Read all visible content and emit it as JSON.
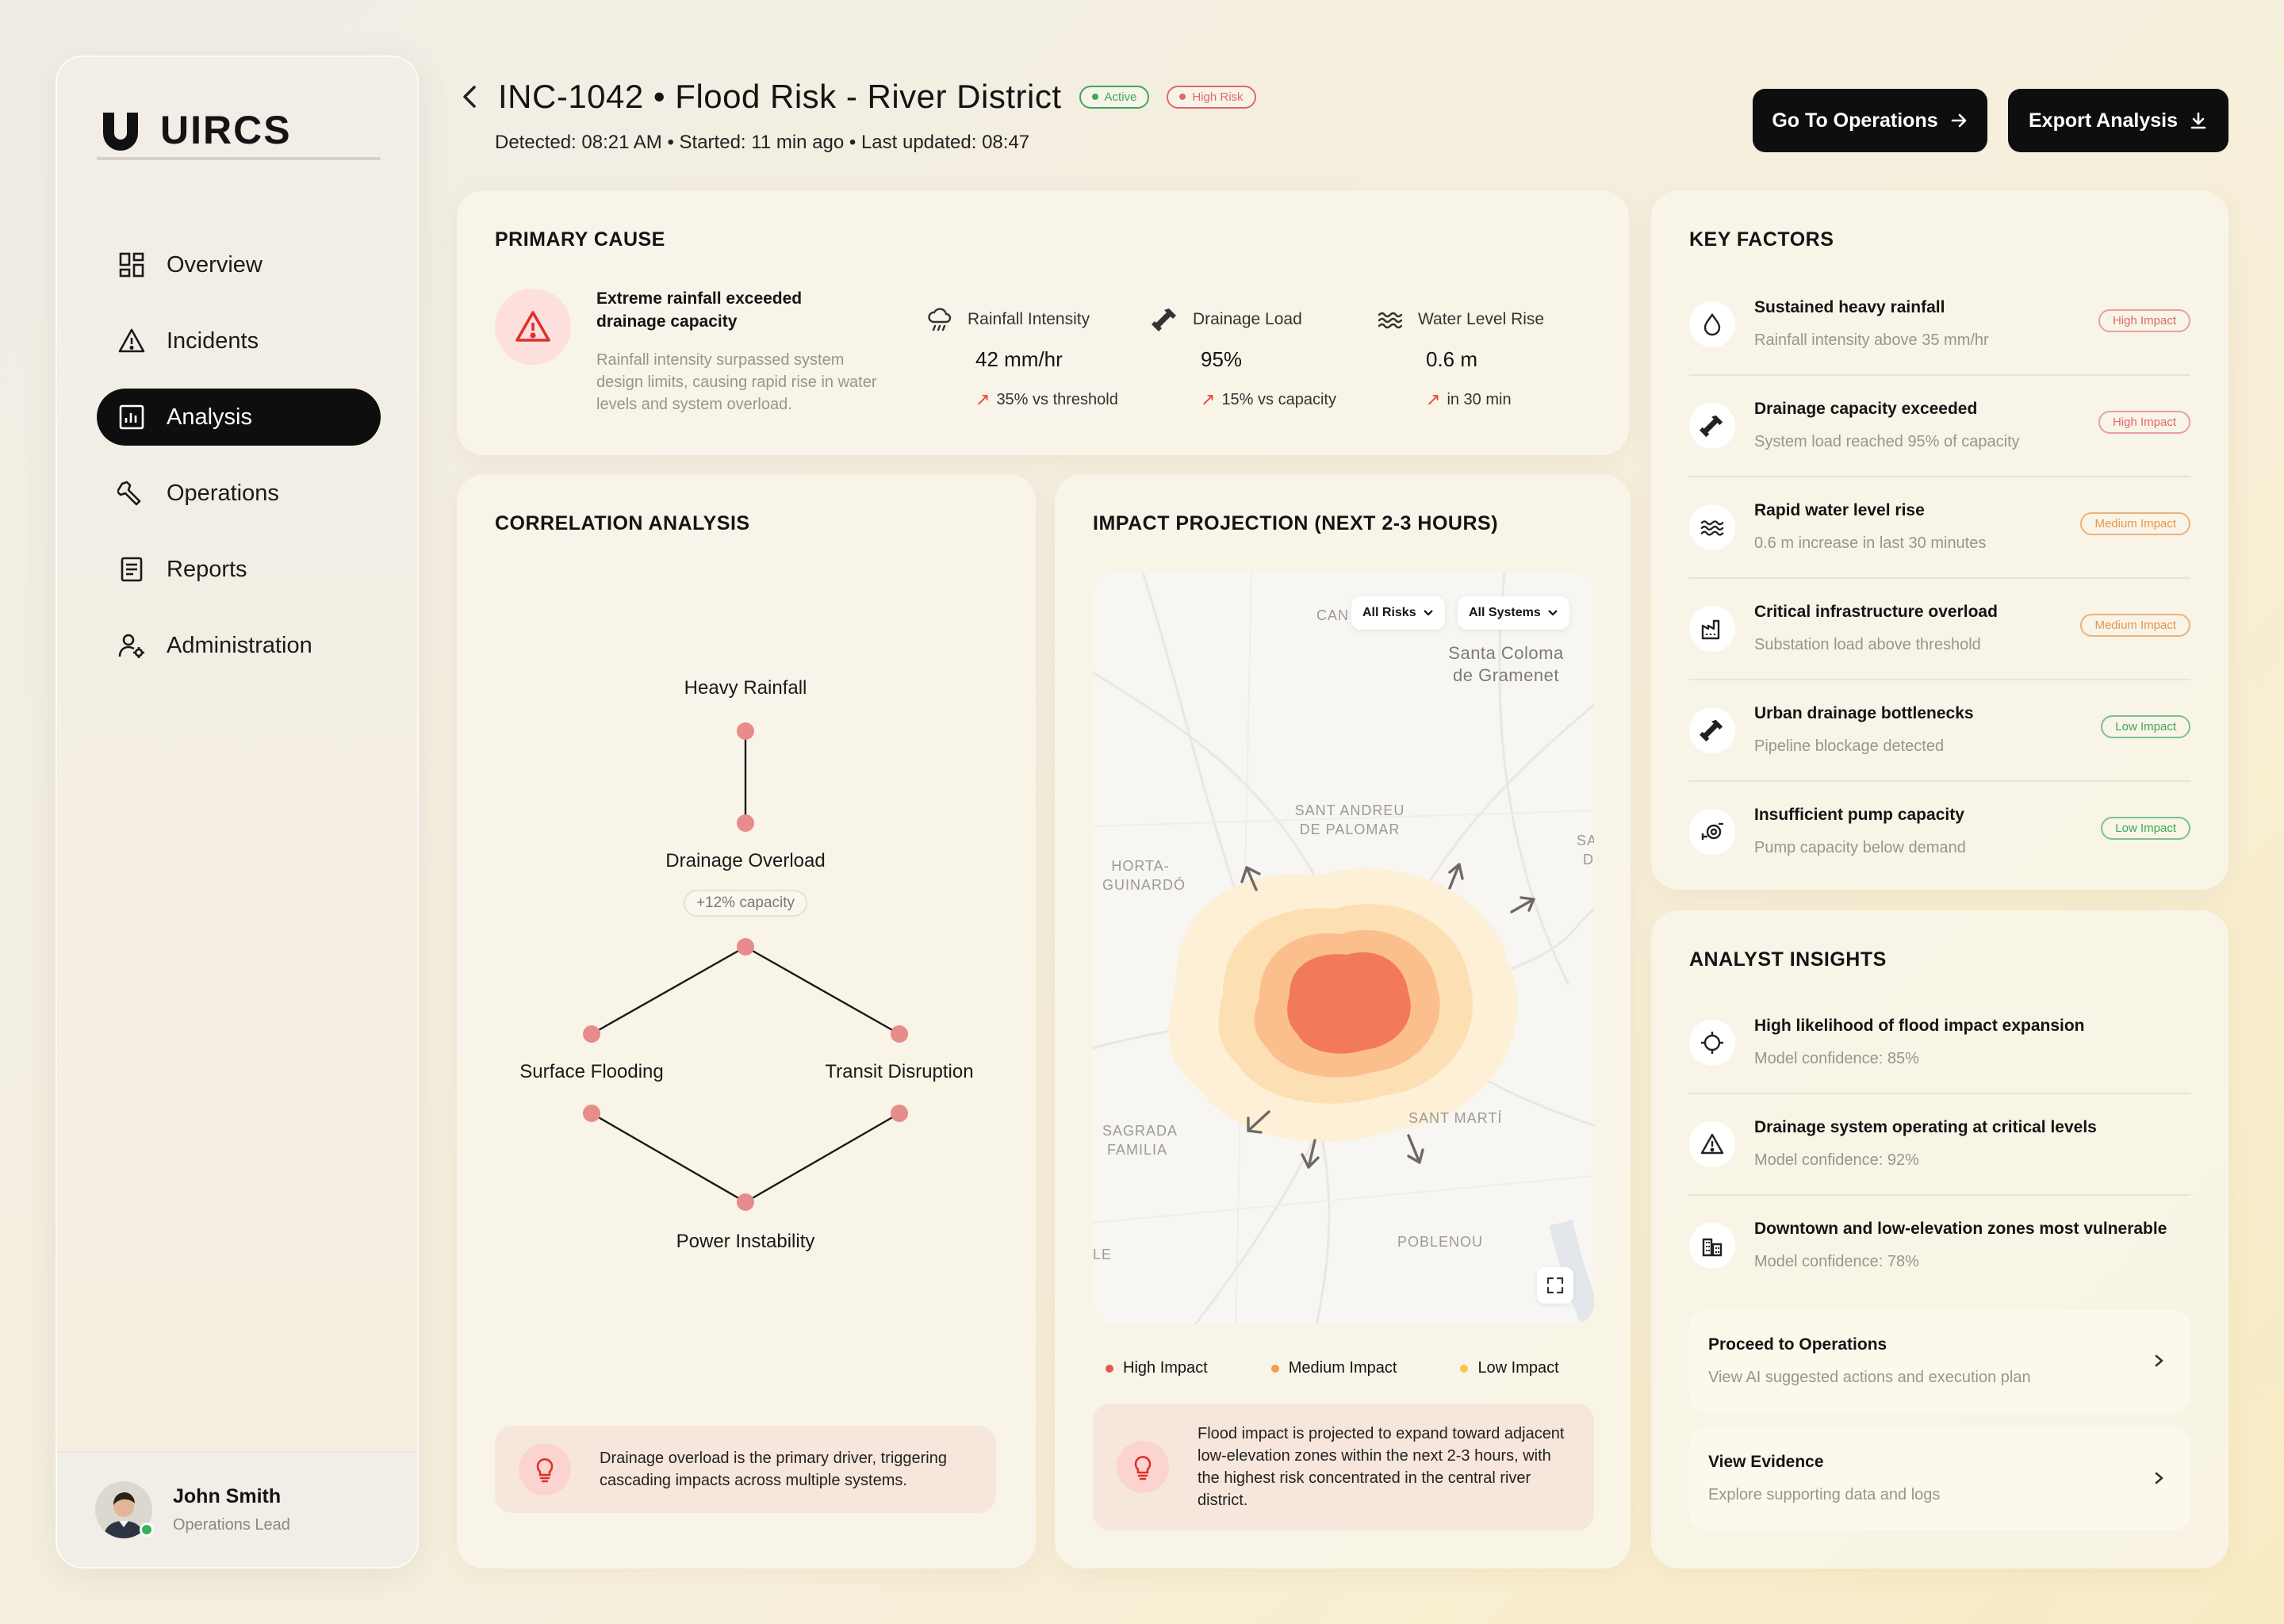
{
  "brand": {
    "name": "UIRCS"
  },
  "sidebar": {
    "items": [
      {
        "label": "Overview",
        "icon": "grid-icon"
      },
      {
        "label": "Incidents",
        "icon": "warning-icon"
      },
      {
        "label": "Analysis",
        "icon": "chart-icon",
        "active": true
      },
      {
        "label": "Operations",
        "icon": "wrench-icon"
      },
      {
        "label": "Reports",
        "icon": "document-icon"
      },
      {
        "label": "Administration",
        "icon": "user-gear-icon"
      }
    ],
    "user": {
      "name": "John Smith",
      "role": "Operations Lead"
    }
  },
  "header": {
    "title": "INC-1042 • Flood Risk - River District",
    "badge_active": "Active",
    "badge_risk": "High Risk",
    "meta": "Detected: 08:21 AM • Started: 11 min ago • Last updated: 08:47",
    "btn_operations": "Go To Operations",
    "btn_export": "Export Analysis"
  },
  "primary_cause": {
    "title": "PRIMARY CAUSE",
    "headline": "Extreme rainfall exceeded drainage capacity",
    "description": "Rainfall intensity surpassed system design limits, causing rapid rise in water levels and system overload.",
    "metrics": [
      {
        "label": "Rainfall Intensity",
        "value": "42 mm/hr",
        "delta": "35% vs threshold",
        "icon": "rain-cloud-icon"
      },
      {
        "label": "Drainage Load",
        "value": "95%",
        "delta": "15% vs capacity",
        "icon": "pipe-icon"
      },
      {
        "label": "Water Level Rise",
        "value": "0.6 m",
        "delta": "in 30 min",
        "icon": "waves-icon"
      }
    ]
  },
  "correlation": {
    "title": "CORRELATION ANALYSIS",
    "nodes": {
      "heavy_rainfall": "Heavy Rainfall",
      "drainage_overload": "Drainage Overload",
      "capacity_pill": "+12% capacity",
      "surface_flooding": "Surface Flooding",
      "transit_disruption": "Transit Disruption",
      "power_instability": "Power Instability"
    },
    "note": "Drainage overload is the primary driver, triggering cascading impacts across multiple systems."
  },
  "impact": {
    "title": "IMPACT PROJECTION (NEXT 2-3 HOURS)",
    "filter_risks": "All Risks",
    "filter_systems": "All Systems",
    "map_labels": {
      "can": "CAN",
      "santa_coloma": "Santa Coloma de Gramenet",
      "sant_andreu": "SANT ANDREU DE PALOMAR",
      "horta": "HORTA- GUINARDÓ",
      "sa": "SA",
      "d": "D",
      "sagrada": "SAGRADA FAMILIA",
      "sant_marti": "SANT MARTÍ",
      "le": "LE",
      "poblenou": "POBLENOU"
    },
    "legend": [
      {
        "label": "High Impact",
        "color": "#e8584a"
      },
      {
        "label": "Medium Impact",
        "color": "#f0a04b"
      },
      {
        "label": "Low Impact",
        "color": "#f2c94c"
      }
    ],
    "note": "Flood impact is projected to expand toward adjacent low-elevation zones within the next 2-3 hours, with the highest risk concentrated in the central river district."
  },
  "key_factors": {
    "title": "KEY FACTORS",
    "items": [
      {
        "title": "Sustained heavy rainfall",
        "sub": "Rainfall intensity above 35 mm/hr",
        "impact": "High Impact",
        "level": "high",
        "icon": "water-drop-icon"
      },
      {
        "title": "Drainage capacity exceeded",
        "sub": "System load reached 95% of capacity",
        "impact": "High Impact",
        "level": "high",
        "icon": "pipe-icon"
      },
      {
        "title": "Rapid water level rise",
        "sub": "0.6 m increase in last 30 minutes",
        "impact": "Medium Impact",
        "level": "med",
        "icon": "waves-icon"
      },
      {
        "title": "Critical infrastructure overload",
        "sub": "Substation load above threshold",
        "impact": "Medium Impact",
        "level": "med",
        "icon": "factory-icon"
      },
      {
        "title": "Urban drainage bottlenecks",
        "sub": "Pipeline blockage detected",
        "impact": "Low Impact",
        "level": "low",
        "icon": "pipe-icon"
      },
      {
        "title": "Insufficient pump capacity",
        "sub": "Pump capacity below demand",
        "impact": "Low Impact",
        "level": "low",
        "icon": "pump-icon"
      }
    ]
  },
  "insights": {
    "title": "ANALYST INSIGHTS",
    "items": [
      {
        "title": "High likelihood of flood impact expansion",
        "sub": "Model confidence: 85%",
        "icon": "crosshair-icon"
      },
      {
        "title": "Drainage system operating at critical levels",
        "sub": "Model confidence: 92%",
        "icon": "warning-icon"
      },
      {
        "title": "Downtown and low-elevation zones most vulnerable",
        "sub": "Model confidence: 78%",
        "icon": "buildings-icon"
      }
    ],
    "links": [
      {
        "title": "Proceed to Operations",
        "sub": "View AI suggested actions and execution plan"
      },
      {
        "title": "View Evidence",
        "sub": "Explore supporting data and logs"
      }
    ]
  }
}
